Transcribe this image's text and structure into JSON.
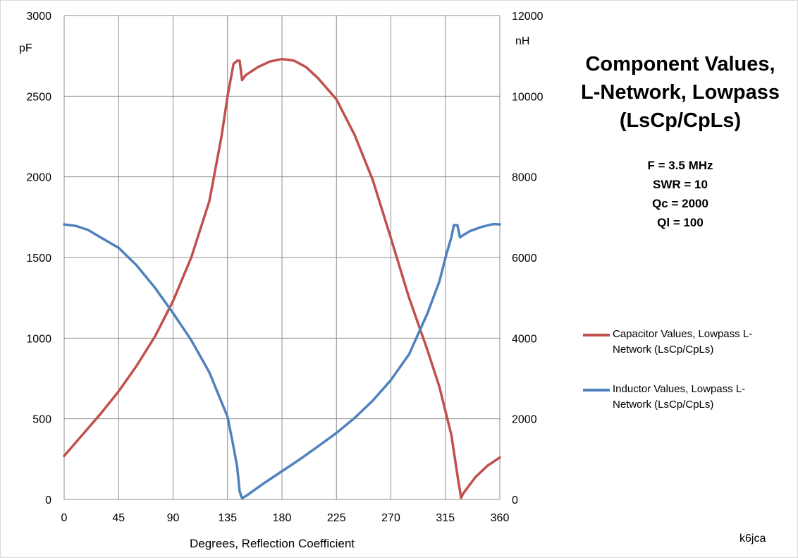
{
  "chart_data": {
    "type": "line",
    "title_lines": [
      "Component Values,",
      "L-Network, Lowpass",
      "(LsCp/CpLs)"
    ],
    "params": [
      "F = 3.5 MHz",
      "SWR = 10",
      "Qc = 2000",
      "Ql = 100"
    ],
    "xlabel": "Degrees, Reflection Coefficient",
    "ylabel_left": "pF",
    "ylabel_right": "nH",
    "xlim": [
      0,
      360
    ],
    "ylim_left": [
      0,
      3000
    ],
    "ylim_right": [
      0,
      12000
    ],
    "x_ticks": [
      0,
      45,
      90,
      135,
      180,
      225,
      270,
      315,
      360
    ],
    "y_ticks_left": [
      0,
      500,
      1000,
      1500,
      2000,
      2500,
      3000
    ],
    "y_ticks_right": [
      0,
      2000,
      4000,
      6000,
      8000,
      10000,
      12000
    ],
    "grid": true,
    "legend_position": "right",
    "series": [
      {
        "name": "Capacitor Values, Lowpass L-Network (LsCp/CpLs)",
        "axis": "left",
        "color": "#c0504d",
        "points": [
          [
            0,
            270
          ],
          [
            15,
            400
          ],
          [
            30,
            530
          ],
          [
            45,
            670
          ],
          [
            60,
            830
          ],
          [
            75,
            1010
          ],
          [
            90,
            1230
          ],
          [
            105,
            1500
          ],
          [
            120,
            1850
          ],
          [
            130,
            2250
          ],
          [
            135,
            2500
          ],
          [
            140,
            2700
          ],
          [
            143,
            2720
          ],
          [
            145,
            2720
          ],
          [
            147,
            2600
          ],
          [
            150,
            2630
          ],
          [
            160,
            2680
          ],
          [
            170,
            2715
          ],
          [
            180,
            2730
          ],
          [
            190,
            2720
          ],
          [
            200,
            2680
          ],
          [
            210,
            2610
          ],
          [
            225,
            2480
          ],
          [
            240,
            2260
          ],
          [
            255,
            1980
          ],
          [
            270,
            1620
          ],
          [
            285,
            1250
          ],
          [
            300,
            930
          ],
          [
            310,
            700
          ],
          [
            320,
            400
          ],
          [
            325,
            150
          ],
          [
            328,
            10
          ],
          [
            330,
            40
          ],
          [
            340,
            140
          ],
          [
            350,
            210
          ],
          [
            360,
            260
          ]
        ]
      },
      {
        "name": "Inductor Values, Lowpass L-Network (LsCp/CpLs)",
        "axis": "right",
        "color": "#4f81bd",
        "points": [
          [
            0,
            6820
          ],
          [
            10,
            6780
          ],
          [
            20,
            6680
          ],
          [
            30,
            6500
          ],
          [
            45,
            6240
          ],
          [
            60,
            5800
          ],
          [
            75,
            5250
          ],
          [
            90,
            4620
          ],
          [
            105,
            3950
          ],
          [
            120,
            3150
          ],
          [
            135,
            2050
          ],
          [
            140,
            1300
          ],
          [
            143,
            800
          ],
          [
            145,
            200
          ],
          [
            147,
            30
          ],
          [
            150,
            80
          ],
          [
            165,
            400
          ],
          [
            180,
            700
          ],
          [
            195,
            1000
          ],
          [
            210,
            1320
          ],
          [
            225,
            1650
          ],
          [
            240,
            2020
          ],
          [
            255,
            2450
          ],
          [
            270,
            2960
          ],
          [
            285,
            3600
          ],
          [
            300,
            4600
          ],
          [
            310,
            5400
          ],
          [
            316,
            6100
          ],
          [
            320,
            6500
          ],
          [
            322,
            6800
          ],
          [
            325,
            6800
          ],
          [
            327,
            6500
          ],
          [
            335,
            6650
          ],
          [
            345,
            6760
          ],
          [
            355,
            6830
          ],
          [
            360,
            6820
          ]
        ]
      }
    ]
  },
  "credit": "k6jca"
}
